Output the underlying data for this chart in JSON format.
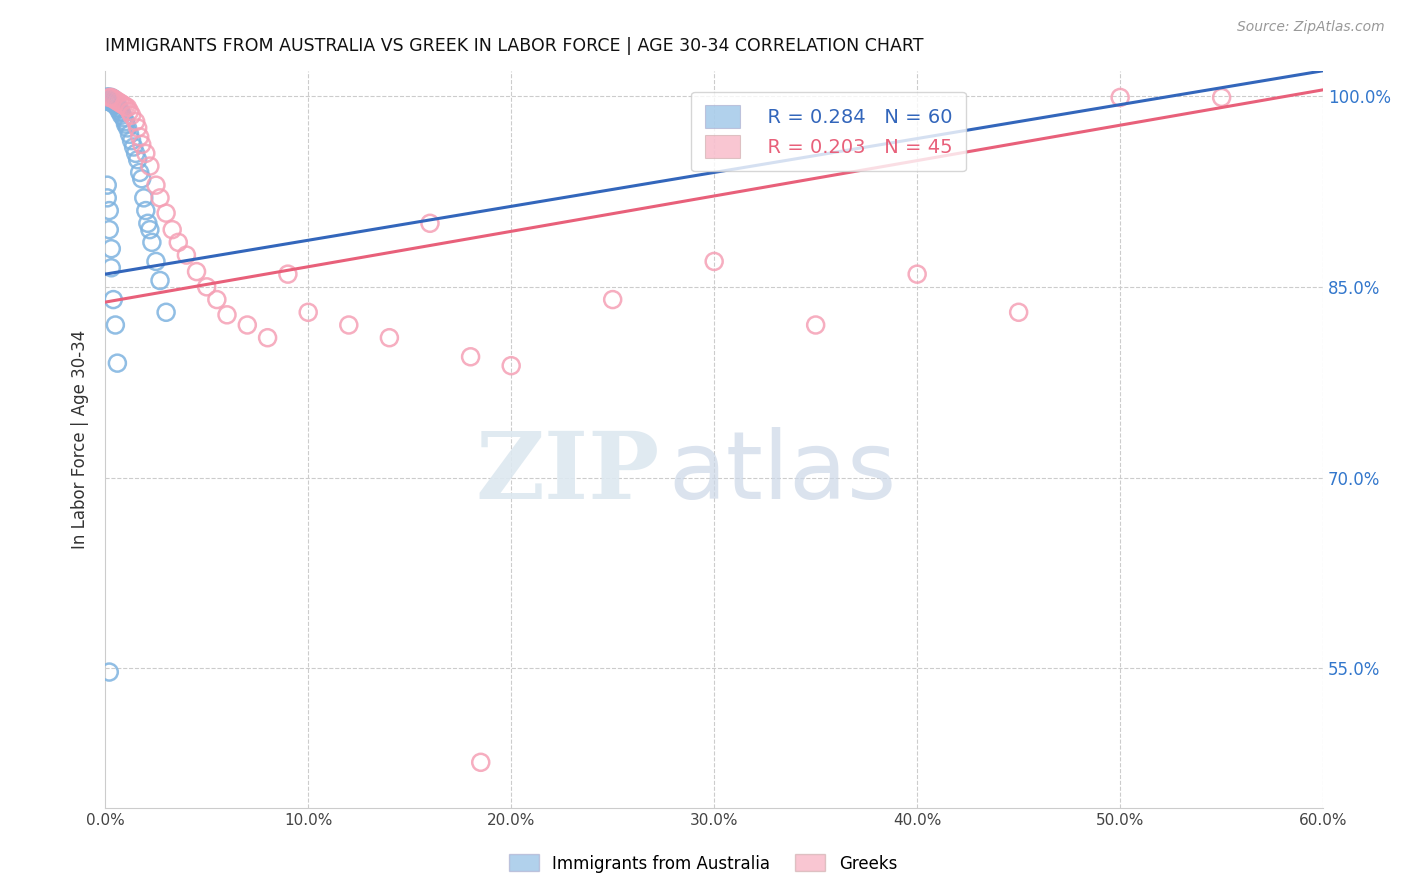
{
  "title": "IMMIGRANTS FROM AUSTRALIA VS GREEK IN LABOR FORCE | AGE 30-34 CORRELATION CHART",
  "source": "Source: ZipAtlas.com",
  "ylabel": "In Labor Force | Age 30-34",
  "xlim": [
    0.0,
    0.6
  ],
  "ylim": [
    0.44,
    1.02
  ],
  "yticks": [
    0.55,
    0.7,
    0.85,
    1.0
  ],
  "ytick_labels": [
    "55.0%",
    "70.0%",
    "85.0%",
    "100.0%"
  ],
  "xticks": [
    0.0,
    0.1,
    0.2,
    0.3,
    0.4,
    0.5,
    0.6
  ],
  "xtick_labels": [
    "0.0%",
    "10.0%",
    "20.0%",
    "30.0%",
    "40.0%",
    "50.0%",
    "60.0%"
  ],
  "legend_r1": "R = 0.284",
  "legend_n1": "N = 60",
  "legend_r2": "R = 0.203",
  "legend_n2": "N = 45",
  "blue_color": "#7EB3E0",
  "pink_color": "#F5A0B5",
  "blue_line_color": "#3366BB",
  "pink_line_color": "#E8607A",
  "blue_edge_color": "#7EB3E0",
  "pink_edge_color": "#F5A0B5",
  "blue_scatter_x": [
    0.001,
    0.001,
    0.001,
    0.001,
    0.001,
    0.001,
    0.001,
    0.001,
    0.002,
    0.002,
    0.002,
    0.002,
    0.002,
    0.002,
    0.003,
    0.003,
    0.003,
    0.003,
    0.004,
    0.004,
    0.004,
    0.004,
    0.005,
    0.005,
    0.005,
    0.006,
    0.006,
    0.007,
    0.007,
    0.008,
    0.008,
    0.009,
    0.01,
    0.01,
    0.011,
    0.012,
    0.013,
    0.014,
    0.015,
    0.016,
    0.017,
    0.018,
    0.019,
    0.02,
    0.021,
    0.022,
    0.023,
    0.025,
    0.027,
    0.03,
    0.001,
    0.001,
    0.002,
    0.002,
    0.003,
    0.003,
    0.004,
    0.005,
    0.006,
    0.002
  ],
  "blue_scatter_y": [
    0.999,
    0.999,
    0.999,
    0.999,
    0.998,
    0.998,
    0.997,
    0.996,
    0.999,
    0.999,
    0.999,
    0.998,
    0.997,
    0.996,
    0.999,
    0.998,
    0.997,
    0.995,
    0.998,
    0.997,
    0.996,
    0.994,
    0.996,
    0.995,
    0.993,
    0.993,
    0.991,
    0.99,
    0.988,
    0.987,
    0.985,
    0.983,
    0.98,
    0.978,
    0.975,
    0.97,
    0.965,
    0.96,
    0.955,
    0.95,
    0.94,
    0.935,
    0.92,
    0.91,
    0.9,
    0.895,
    0.885,
    0.87,
    0.855,
    0.83,
    0.93,
    0.92,
    0.91,
    0.895,
    0.88,
    0.865,
    0.84,
    0.82,
    0.79,
    0.547
  ],
  "pink_scatter_x": [
    0.002,
    0.003,
    0.004,
    0.005,
    0.006,
    0.007,
    0.008,
    0.009,
    0.01,
    0.011,
    0.012,
    0.013,
    0.015,
    0.016,
    0.017,
    0.018,
    0.02,
    0.022,
    0.025,
    0.027,
    0.03,
    0.033,
    0.036,
    0.04,
    0.045,
    0.05,
    0.055,
    0.06,
    0.07,
    0.08,
    0.09,
    0.1,
    0.12,
    0.14,
    0.16,
    0.18,
    0.2,
    0.25,
    0.3,
    0.35,
    0.4,
    0.45,
    0.5,
    0.55,
    0.185
  ],
  "pink_scatter_y": [
    0.999,
    0.999,
    0.998,
    0.997,
    0.996,
    0.995,
    0.994,
    0.993,
    0.992,
    0.991,
    0.988,
    0.985,
    0.98,
    0.975,
    0.968,
    0.962,
    0.955,
    0.945,
    0.93,
    0.92,
    0.908,
    0.895,
    0.885,
    0.875,
    0.862,
    0.85,
    0.84,
    0.828,
    0.82,
    0.81,
    0.86,
    0.83,
    0.82,
    0.81,
    0.9,
    0.795,
    0.788,
    0.84,
    0.87,
    0.82,
    0.86,
    0.83,
    0.999,
    0.999,
    0.476
  ]
}
